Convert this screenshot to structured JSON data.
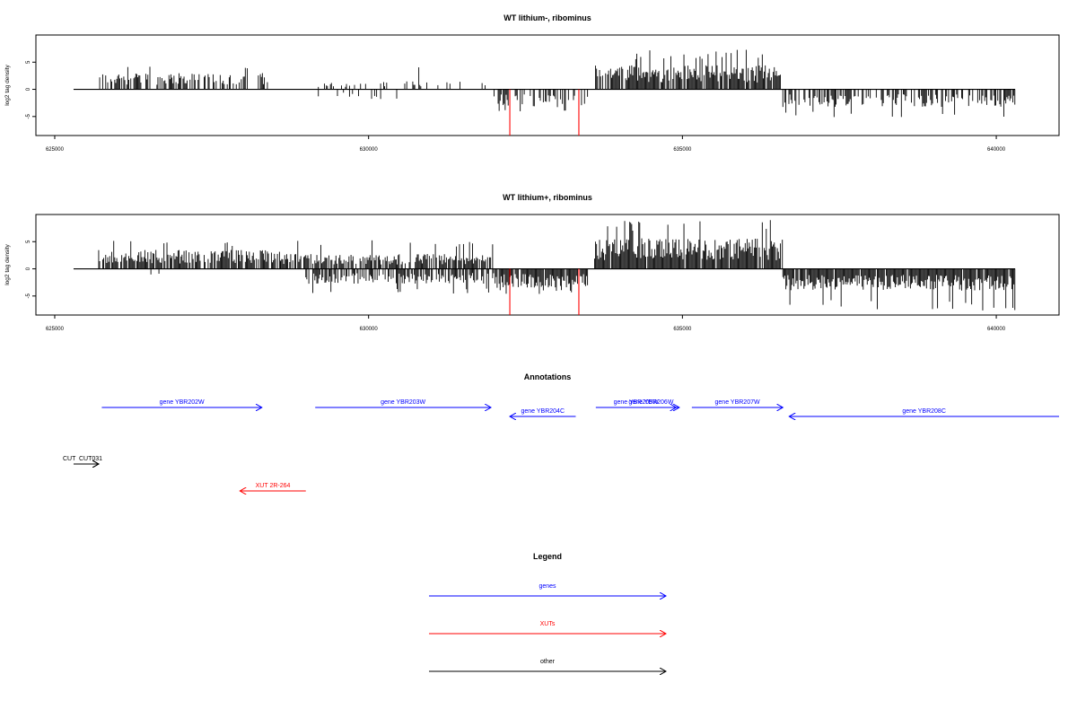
{
  "chart_data": [
    {
      "type": "bar",
      "title": "WT lithium-, ribominus",
      "xlabel": "",
      "ylabel": "log2 tag density",
      "xlim": [
        624700,
        641000
      ],
      "ylim": [
        -8.5,
        10
      ],
      "x_ticks": [
        625000,
        630000,
        635000,
        640000
      ],
      "y_ticks": [
        5,
        0,
        -5
      ],
      "x_tick_labels": [
        "625000",
        "630000",
        "635000",
        "640000"
      ],
      "y_tick_labels": [
        "5",
        "0",
        "-5"
      ],
      "data_extent": [
        625300,
        640300
      ],
      "series": [
        {
          "strand": "+",
          "color": "#000000",
          "regions": [
            {
              "from": 625700,
              "to": 628400,
              "mean": 2.4,
              "max": 5.0,
              "density": 0.55
            },
            {
              "from": 629200,
              "to": 632000,
              "mean": 1.2,
              "max": 4.5,
              "density": 0.15
            },
            {
              "from": 633600,
              "to": 636600,
              "mean": 3.6,
              "max": 7.4,
              "density": 0.85
            }
          ]
        },
        {
          "strand": "-",
          "color": "#000000",
          "regions": [
            {
              "from": 629200,
              "to": 630500,
              "mean": -1.5,
              "max": -3.8,
              "density": 0.08
            },
            {
              "from": 632000,
              "to": 633500,
              "mean": -2.5,
              "max": -4.2,
              "density": 0.4
            },
            {
              "from": 636600,
              "to": 640300,
              "mean": -2.6,
              "max": -5.2,
              "density": 0.55
            }
          ]
        }
      ],
      "highlights": [
        {
          "x": 632250,
          "y": -8.5,
          "color": "#ff0000"
        },
        {
          "x": 633350,
          "y": -8.5,
          "color": "#ff0000"
        }
      ]
    },
    {
      "type": "bar",
      "title": "WT lithium+, ribominus",
      "xlabel": "",
      "ylabel": "log2 tag density",
      "xlim": [
        624700,
        641000
      ],
      "ylim": [
        -8.5,
        10
      ],
      "x_ticks": [
        625000,
        630000,
        635000,
        640000
      ],
      "y_ticks": [
        5,
        0,
        -5
      ],
      "x_tick_labels": [
        "625000",
        "630000",
        "635000",
        "640000"
      ],
      "y_tick_labels": [
        "5",
        "0",
        "-5"
      ],
      "data_extent": [
        625300,
        640300
      ],
      "series": [
        {
          "strand": "+",
          "color": "#000000",
          "regions": [
            {
              "from": 625700,
              "to": 628600,
              "mean": 2.8,
              "max": 5.6,
              "density": 0.8
            },
            {
              "from": 628600,
              "to": 632000,
              "mean": 2.2,
              "max": 5.3,
              "density": 0.75
            },
            {
              "from": 633600,
              "to": 636600,
              "mean": 4.5,
              "max": 9.0,
              "density": 0.95
            }
          ]
        },
        {
          "strand": "-",
          "color": "#000000",
          "regions": [
            {
              "from": 629000,
              "to": 632000,
              "mean": -2.2,
              "max": -4.8,
              "density": 0.6
            },
            {
              "from": 632000,
              "to": 633500,
              "mean": -2.8,
              "max": -5.0,
              "density": 0.9
            },
            {
              "from": 636600,
              "to": 640300,
              "mean": -3.2,
              "max": -7.7,
              "density": 0.95
            },
            {
              "from": 625700,
              "to": 626700,
              "mean": -1.5,
              "max": -3.3,
              "density": 0.03
            }
          ]
        }
      ],
      "highlights": [
        {
          "x": 632250,
          "y": -8.5,
          "color": "#ff0000"
        },
        {
          "x": 633350,
          "y": -8.5,
          "color": "#ff0000"
        }
      ]
    }
  ],
  "annotations": {
    "title": "Annotations",
    "features": [
      {
        "label": "gene YBR202W",
        "start": 625750,
        "end": 628300,
        "strand": "+",
        "color": "#0000ff",
        "row": "genes-top"
      },
      {
        "label": "gene YBR203W",
        "start": 629150,
        "end": 631950,
        "strand": "+",
        "color": "#0000ff",
        "row": "genes-top"
      },
      {
        "label": "gene YBR204C",
        "start": 633300,
        "end": 632250,
        "strand": "-",
        "color": "#0000ff",
        "row": "genes-mid"
      },
      {
        "label": "gene YBR205W",
        "start": 633620,
        "end": 634900,
        "strand": "+",
        "color": "#0000ff",
        "row": "genes-top"
      },
      {
        "label": "gene YBR206W",
        "start": 634050,
        "end": 634950,
        "strand": "+",
        "color": "#0000ff",
        "row": "genes-top"
      },
      {
        "label": "gene YBR207W",
        "start": 635150,
        "end": 636600,
        "strand": "+",
        "color": "#0000ff",
        "row": "genes-top"
      },
      {
        "label": "gene YBR208C",
        "start": 641000,
        "end": 636700,
        "strand": "-",
        "color": "#0000ff",
        "row": "genes-mid"
      },
      {
        "label": "CUT",
        "start": 625300,
        "end": 625700,
        "strand": "+",
        "color": "#000000",
        "row": "other"
      },
      {
        "label": "CUT031",
        "start": 625350,
        "end": 625700,
        "strand": "+",
        "color": "#000000",
        "row": "other"
      },
      {
        "label": "XUT 2R-264",
        "start": 629000,
        "end": 627950,
        "strand": "-",
        "color": "#ff0000",
        "row": "xut"
      }
    ]
  },
  "legend": {
    "title": "Legend",
    "items": [
      {
        "label": "genes",
        "color": "#0000ff"
      },
      {
        "label": "XUTs",
        "color": "#ff0000"
      },
      {
        "label": "other",
        "color": "#000000"
      }
    ]
  }
}
